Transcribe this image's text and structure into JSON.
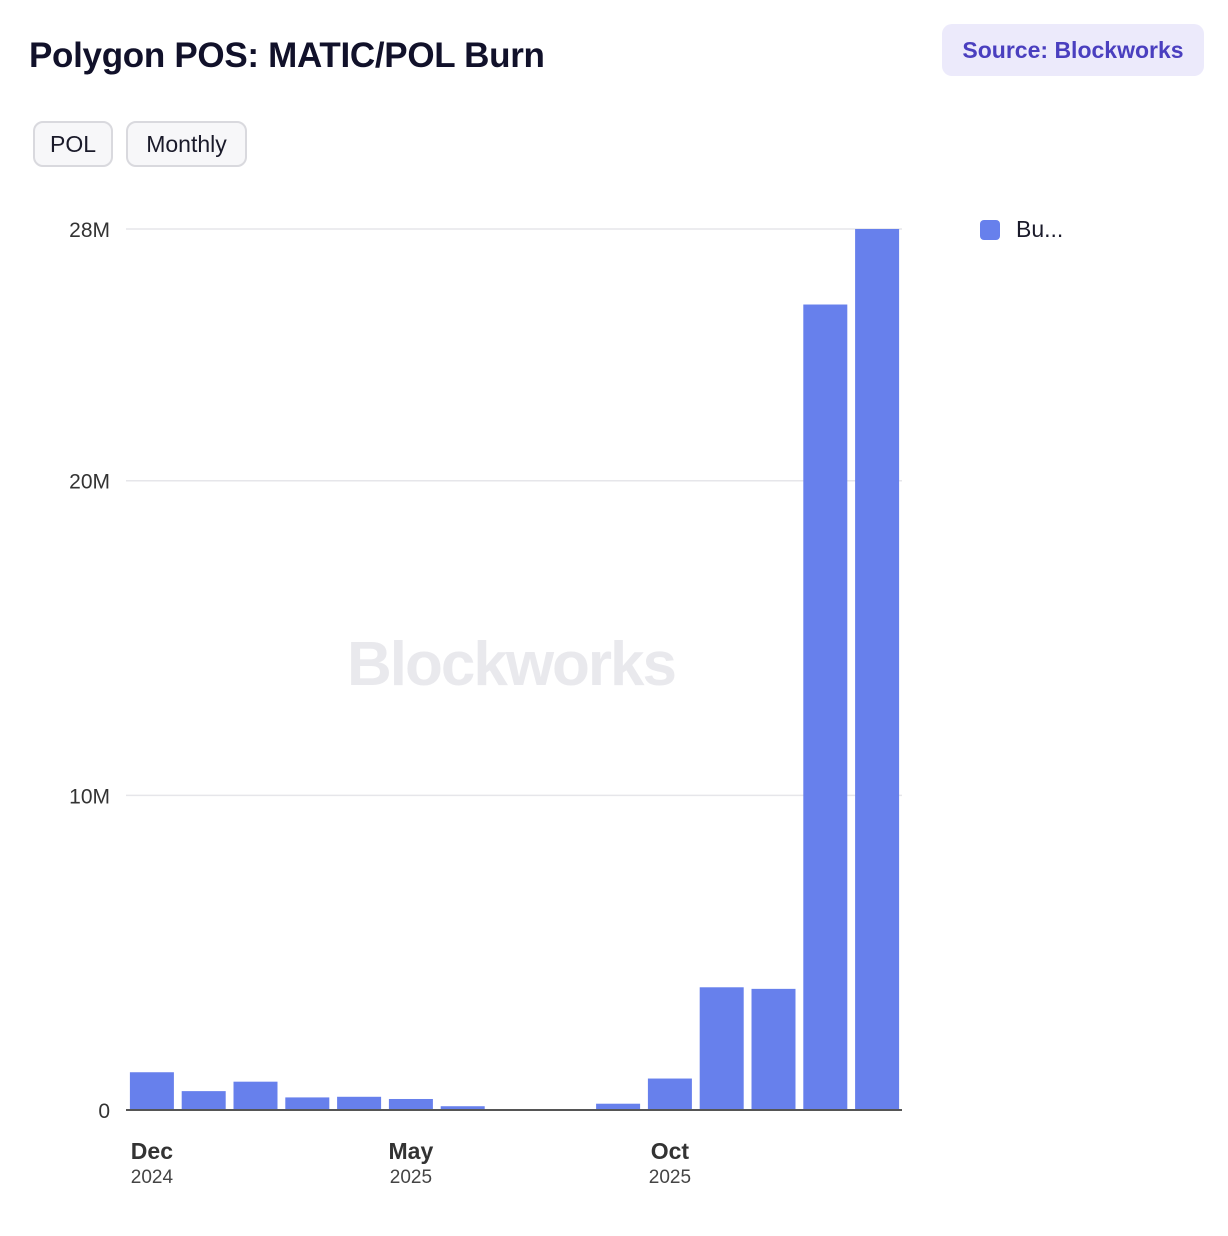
{
  "header": {
    "title": "Polygon POS: MATIC/POL Burn",
    "source_label": "Source: Blockworks"
  },
  "controls": {
    "unit_label": "POL",
    "period_label": "Monthly"
  },
  "watermark": "Blockworks",
  "legend": {
    "label": "Bu..."
  },
  "colors": {
    "bar": "#6780ec",
    "grid": "#e6e6ea",
    "axis": "#555555",
    "watermark": "#e9e9ed",
    "accent": "#4a3fbf"
  },
  "chart_data": {
    "type": "bar",
    "categories": [
      "2024-12",
      "2025-01",
      "2025-02",
      "2025-03",
      "2025-04",
      "2025-05",
      "2025-06",
      "2025-07",
      "2025-08",
      "2025-09",
      "2025-10",
      "2025-11",
      "2025-12",
      "2026-01",
      "2026-02"
    ],
    "series": [
      {
        "values": [
          1200000,
          600000,
          900000,
          400000,
          420000,
          350000,
          120000,
          0,
          0,
          200000,
          1000000,
          3900000,
          3850000,
          25600000,
          28000000
        ]
      }
    ],
    "title": "Polygon POS: MATIC/POL Burn",
    "xlabel": "",
    "ylabel": "",
    "ylim": [
      0,
      28000000
    ],
    "yticks": [
      {
        "value": 0,
        "label": "0"
      },
      {
        "value": 10000000,
        "label": "10M"
      },
      {
        "value": 20000000,
        "label": "20M"
      },
      {
        "value": 28000000,
        "label": "28M"
      }
    ],
    "xticks": [
      {
        "category": "2024-12",
        "label": "Dec",
        "sublabel": "2024"
      },
      {
        "category": "2025-05",
        "label": "May",
        "sublabel": "2025"
      },
      {
        "category": "2025-10",
        "label": "Oct",
        "sublabel": "2025"
      }
    ],
    "grid": true,
    "legend_position": "top-right"
  }
}
